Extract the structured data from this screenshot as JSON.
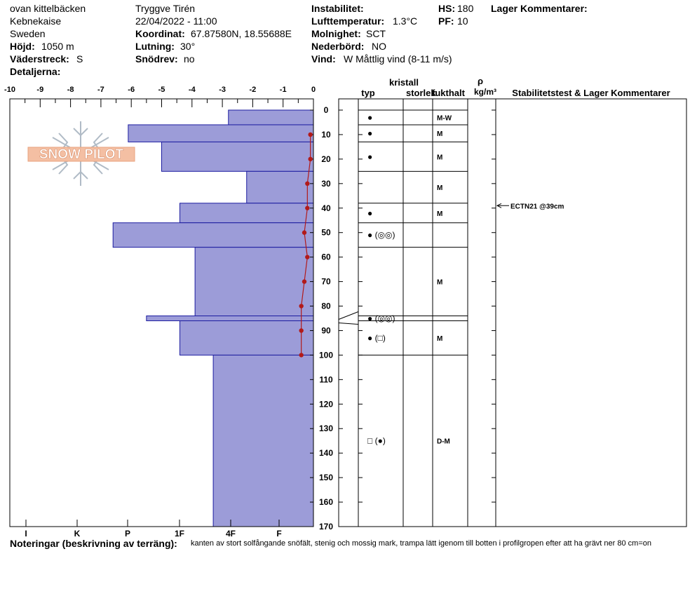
{
  "header": {
    "location": "ovan kittelbäcken",
    "area": "Kebnekaise",
    "country": "Sweden",
    "elevation_label": "Höjd:",
    "elevation_value": "1050 m",
    "aspect_label": "Väderstreck:",
    "aspect_value": "S",
    "details_label": "Detaljerna:",
    "observer": "Tryggve  Tirén",
    "datetime": "22/04/2022 - 11:00",
    "coord_label": "Koordinat:",
    "coord_value": "67.87580N, 18.55688E",
    "slope_label": "Lutning:",
    "slope_value": "30°",
    "drift_label": "Snödrev:",
    "drift_value": "no",
    "instability_label": "Instabilitet:",
    "airtemp_label": "Lufttemperatur:",
    "airtemp_value": "1.3°C",
    "sky_label": "Molnighet:",
    "sky_value": "SCT",
    "precip_label": "Nederbörd:",
    "precip_value": "NO",
    "wind_label": "Vind:",
    "wind_value": "W Måttlig vind (8-11 m/s)",
    "hs_label": "HS:",
    "hs_value": "180",
    "pf_label": "PF:",
    "pf_value": "10",
    "layer_comments_label": "Lager Kommentarer:"
  },
  "logo_text": "SNOW PILOT",
  "column_headers": {
    "crystal": "kristall",
    "type": "typ",
    "size": "storlek",
    "moisture": "fukthalt",
    "density_symbol": "ρ",
    "density_unit": "kg/m³",
    "stability": "Stabilitetstest & Lager Kommentarer"
  },
  "notes": {
    "label": "Noteringar (beskrivning av terräng):",
    "text": "kanten av stort solfångande snöfält, stenig och mossig mark, trampa lätt igenom till botten i profilgropen efter att ha grävt ner 80 cm=on"
  },
  "stability_test": {
    "label": "ECTN21 @39cm",
    "depth": 39
  },
  "chart_data": {
    "type": "bar",
    "temperature_axis": {
      "ticks": [
        -10,
        -9,
        -8,
        -7,
        -6,
        -5,
        -4,
        -3,
        -2,
        -1,
        0
      ],
      "range": [
        -10,
        0
      ]
    },
    "hardness_axis": {
      "labels": [
        "I",
        "K",
        "P",
        "1F",
        "4F",
        "F"
      ]
    },
    "depth_axis": {
      "ticks": [
        0,
        10,
        20,
        30,
        40,
        50,
        60,
        70,
        80,
        90,
        100,
        110,
        120,
        130,
        140,
        150,
        160,
        170
      ],
      "range": [
        0,
        170
      ]
    },
    "hardness_layers": [
      {
        "top": 0,
        "bottom": 6,
        "value": -2.8
      },
      {
        "top": 6,
        "bottom": 13,
        "value": -6.1
      },
      {
        "top": 13,
        "bottom": 25,
        "value": -5.0
      },
      {
        "top": 25,
        "bottom": 38,
        "value": -2.2
      },
      {
        "top": 38,
        "bottom": 46,
        "value": -4.4
      },
      {
        "top": 46,
        "bottom": 56,
        "value": -6.6
      },
      {
        "top": 56,
        "bottom": 84,
        "value": -3.9
      },
      {
        "top": 84,
        "bottom": 86,
        "value": -5.5
      },
      {
        "top": 86,
        "bottom": 100,
        "value": -4.4
      },
      {
        "top": 100,
        "bottom": 170,
        "value": -3.3
      }
    ],
    "temperature_profile": {
      "depth": [
        10,
        20,
        30,
        40,
        50,
        60,
        70,
        80,
        90,
        100
      ],
      "temp": [
        -0.1,
        -0.1,
        -0.2,
        -0.2,
        -0.3,
        -0.2,
        -0.3,
        -0.4,
        -0.4,
        -0.4
      ]
    },
    "layers": [
      {
        "top": 0,
        "bottom": 6,
        "crystal": "●",
        "moisture": "M-W"
      },
      {
        "top": 6,
        "bottom": 13,
        "crystal": "●",
        "moisture": "M"
      },
      {
        "top": 13,
        "bottom": 25,
        "crystal": "●",
        "moisture": "M"
      },
      {
        "top": 25,
        "bottom": 38,
        "crystal": "",
        "moisture": "M"
      },
      {
        "top": 38,
        "bottom": 46,
        "crystal": "●",
        "moisture": "M"
      },
      {
        "top": 46,
        "bottom": 56,
        "crystal": "●  (◎◎)",
        "moisture": ""
      },
      {
        "top": 56,
        "bottom": 84,
        "crystal": "",
        "moisture": "M"
      },
      {
        "top": 84,
        "bottom": 86,
        "crystal": "●  (◎◎)",
        "moisture": ""
      },
      {
        "top": 86,
        "bottom": 100,
        "crystal": "●  (□)",
        "moisture": "M"
      },
      {
        "top": 100,
        "bottom": 170,
        "crystal": "□  (●)",
        "moisture": "D-M"
      }
    ],
    "colors": {
      "bars": "#9c9cd8",
      "bar_outline": "#1c1ca0",
      "temperature": "#b21a1a"
    }
  }
}
